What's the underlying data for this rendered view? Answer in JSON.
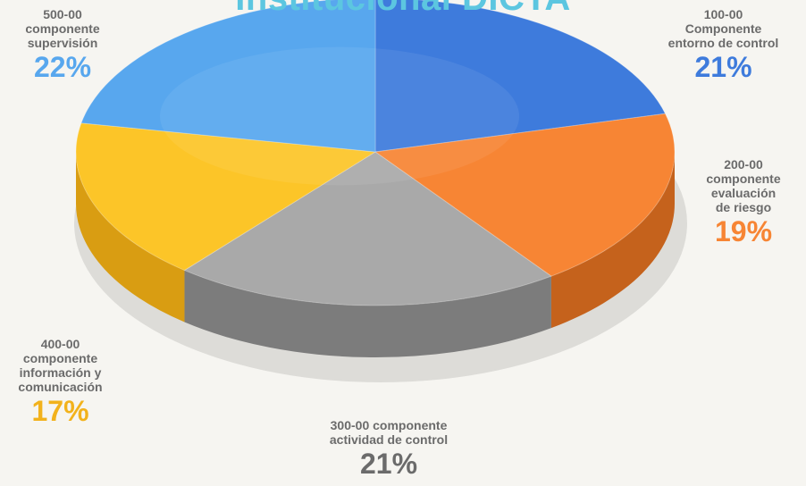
{
  "title": "Institucional  DICTA",
  "chart_data": {
    "type": "pie",
    "title": "Institucional  DICTA",
    "slices": [
      {
        "label": "100-00\nComponente\nentorno de control",
        "value": 21,
        "display": "21%",
        "color": "#3e7bdc",
        "side": "#2a58a6"
      },
      {
        "label": "200-00\ncomponente\nevaluación\nde riesgo",
        "value": 19,
        "display": "19%",
        "color": "#f78534",
        "side": "#c5621c"
      },
      {
        "label": "300-00 componente\nactividad de control",
        "value": 21,
        "display": "21%",
        "color": "#a9a9a9",
        "side": "#7c7c7c"
      },
      {
        "label": "400-00\ncomponente\ninformación y\ncomunicación",
        "value": 17,
        "display": "17%",
        "color": "#fcc528",
        "side": "#d99d12"
      },
      {
        "label": "500-00\ncomponente\nsupervisión",
        "value": 22,
        "display": "22%",
        "color": "#58a7ee",
        "side": "#3d7fc2"
      }
    ]
  }
}
